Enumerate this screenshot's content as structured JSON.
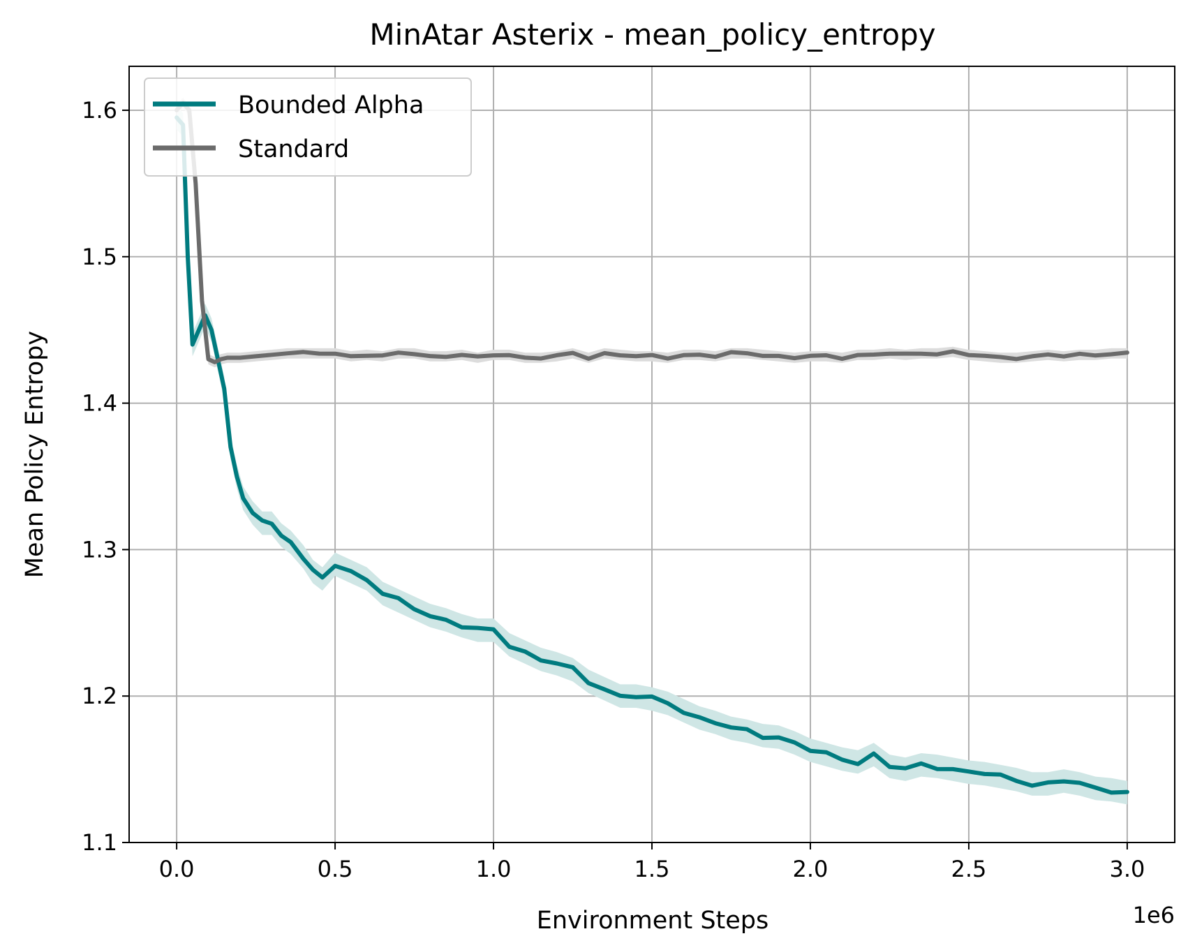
{
  "chart_data": {
    "type": "line",
    "title": "MinAtar Asterix - mean_policy_entropy",
    "xlabel": "Environment Steps",
    "ylabel": "Mean Policy Entropy",
    "x_offset_label": "1e6",
    "xlim": [
      -0.15,
      3.15
    ],
    "ylim": [
      1.1,
      1.63
    ],
    "x_ticks": [
      0.0,
      0.5,
      1.0,
      1.5,
      2.0,
      2.5,
      3.0
    ],
    "x_tick_labels": [
      "0.0",
      "0.5",
      "1.0",
      "1.5",
      "2.0",
      "2.5",
      "3.0"
    ],
    "y_ticks": [
      1.1,
      1.2,
      1.3,
      1.4,
      1.5,
      1.6
    ],
    "y_tick_labels": [
      "1.1",
      "1.2",
      "1.3",
      "1.4",
      "1.5",
      "1.6"
    ],
    "grid": true,
    "legend_position": "top-left",
    "series": [
      {
        "name": "Bounded Alpha",
        "color": "#007b7f",
        "band_color": "#cfe6e5",
        "x": [
          0.0,
          0.02,
          0.035,
          0.05,
          0.07,
          0.09,
          0.11,
          0.13,
          0.15,
          0.17,
          0.19,
          0.21,
          0.24,
          0.27,
          0.3,
          0.33,
          0.36,
          0.4,
          0.43,
          0.46,
          0.5,
          0.55,
          0.6,
          0.65,
          0.7,
          0.75,
          0.8,
          0.85,
          0.9,
          0.95,
          1.0,
          1.05,
          1.1,
          1.15,
          1.2,
          1.25,
          1.3,
          1.35,
          1.4,
          1.45,
          1.5,
          1.55,
          1.6,
          1.65,
          1.7,
          1.75,
          1.8,
          1.85,
          1.9,
          1.95,
          2.0,
          2.05,
          2.1,
          2.15,
          2.2,
          2.25,
          2.3,
          2.35,
          2.4,
          2.45,
          2.5,
          2.55,
          2.6,
          2.65,
          2.7,
          2.75,
          2.8,
          2.85,
          2.9,
          2.95,
          3.0
        ],
        "y": [
          1.595,
          1.59,
          1.5,
          1.44,
          1.45,
          1.46,
          1.45,
          1.43,
          1.41,
          1.37,
          1.35,
          1.335,
          1.325,
          1.318,
          1.318,
          1.31,
          1.305,
          1.295,
          1.285,
          1.28,
          1.29,
          1.285,
          1.28,
          1.27,
          1.265,
          1.26,
          1.255,
          1.252,
          1.248,
          1.245,
          1.245,
          1.235,
          1.23,
          1.225,
          1.222,
          1.218,
          1.21,
          1.205,
          1.2,
          1.2,
          1.198,
          1.195,
          1.19,
          1.185,
          1.182,
          1.178,
          1.176,
          1.173,
          1.172,
          1.168,
          1.163,
          1.16,
          1.157,
          1.155,
          1.16,
          1.152,
          1.15,
          1.153,
          1.152,
          1.15,
          1.148,
          1.147,
          1.145,
          1.143,
          1.14,
          1.14,
          1.142,
          1.14,
          1.137,
          1.136,
          1.134
        ]
      },
      {
        "name": "Standard",
        "color": "#6b6b6b",
        "band_color": "#dcdcdc",
        "x": [
          0.0,
          0.02,
          0.04,
          0.06,
          0.08,
          0.1,
          0.12,
          0.14,
          0.16,
          0.2,
          0.25,
          0.3,
          0.35,
          0.4,
          0.45,
          0.5,
          0.55,
          0.6,
          0.65,
          0.7,
          0.75,
          0.8,
          0.85,
          0.9,
          0.95,
          1.0,
          1.05,
          1.1,
          1.15,
          1.2,
          1.25,
          1.3,
          1.35,
          1.4,
          1.45,
          1.5,
          1.55,
          1.6,
          1.65,
          1.7,
          1.75,
          1.8,
          1.85,
          1.9,
          1.95,
          2.0,
          2.05,
          2.1,
          2.15,
          2.2,
          2.25,
          2.3,
          2.35,
          2.4,
          2.45,
          2.5,
          2.55,
          2.6,
          2.65,
          2.7,
          2.75,
          2.8,
          2.85,
          2.9,
          2.95,
          3.0
        ],
        "y": [
          1.6,
          1.605,
          1.6,
          1.55,
          1.47,
          1.43,
          1.428,
          1.43,
          1.431,
          1.431,
          1.432,
          1.433,
          1.434,
          1.434,
          1.434,
          1.434,
          1.432,
          1.433,
          1.432,
          1.434,
          1.434,
          1.432,
          1.432,
          1.433,
          1.431,
          1.433,
          1.433,
          1.431,
          1.431,
          1.432,
          1.434,
          1.431,
          1.434,
          1.433,
          1.432,
          1.432,
          1.431,
          1.433,
          1.433,
          1.432,
          1.434,
          1.434,
          1.433,
          1.432,
          1.431,
          1.432,
          1.432,
          1.431,
          1.433,
          1.433,
          1.434,
          1.433,
          1.434,
          1.434,
          1.435,
          1.433,
          1.432,
          1.431,
          1.431,
          1.432,
          1.433,
          1.432,
          1.433,
          1.433,
          1.434,
          1.434
        ]
      }
    ]
  }
}
